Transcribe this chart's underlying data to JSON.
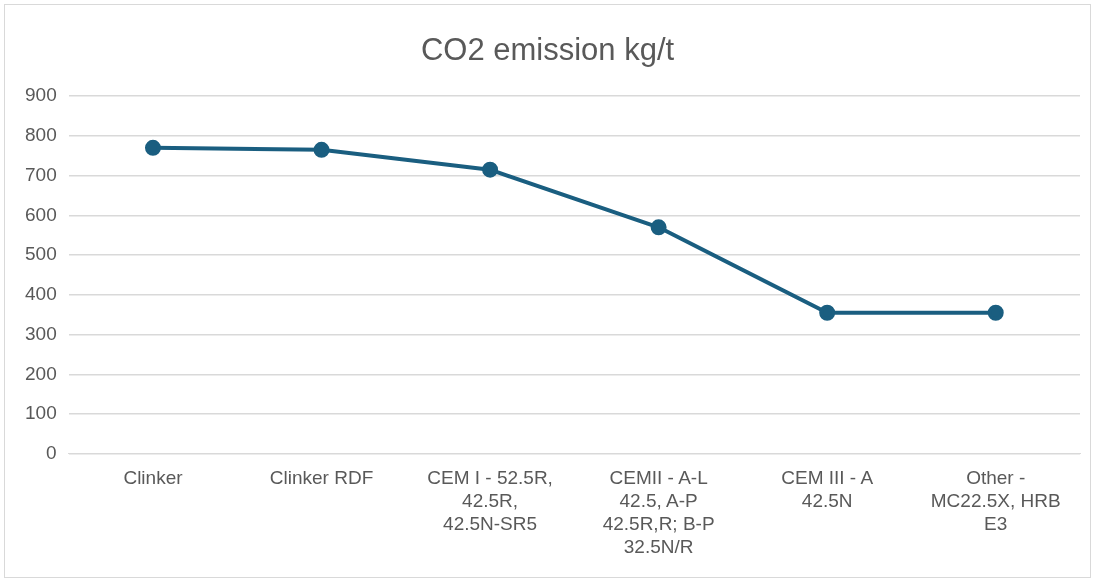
{
  "chart_data": {
    "type": "line",
    "title": "CO2 emission kg/t",
    "categories": [
      "Clinker",
      "Clinker RDF",
      "CEM I - 52.5R, 42.5R, 42.5N-SR5",
      "CEMII - A-L 42.5, A-P 42.5R,R; B-P 32.5N/R",
      "CEM III - A 42.5N",
      "Other - MC22.5X, HRB E3"
    ],
    "series": [
      {
        "color": "#1a5e80",
        "values": [
          770,
          765,
          715,
          570,
          355,
          355
        ]
      }
    ],
    "ylim": [
      0,
      900
    ],
    "yticks": [
      0,
      100,
      200,
      300,
      400,
      500,
      600,
      700,
      800,
      900
    ],
    "grid": "y",
    "legend": false,
    "marker": "circle",
    "line_style": "solid"
  }
}
